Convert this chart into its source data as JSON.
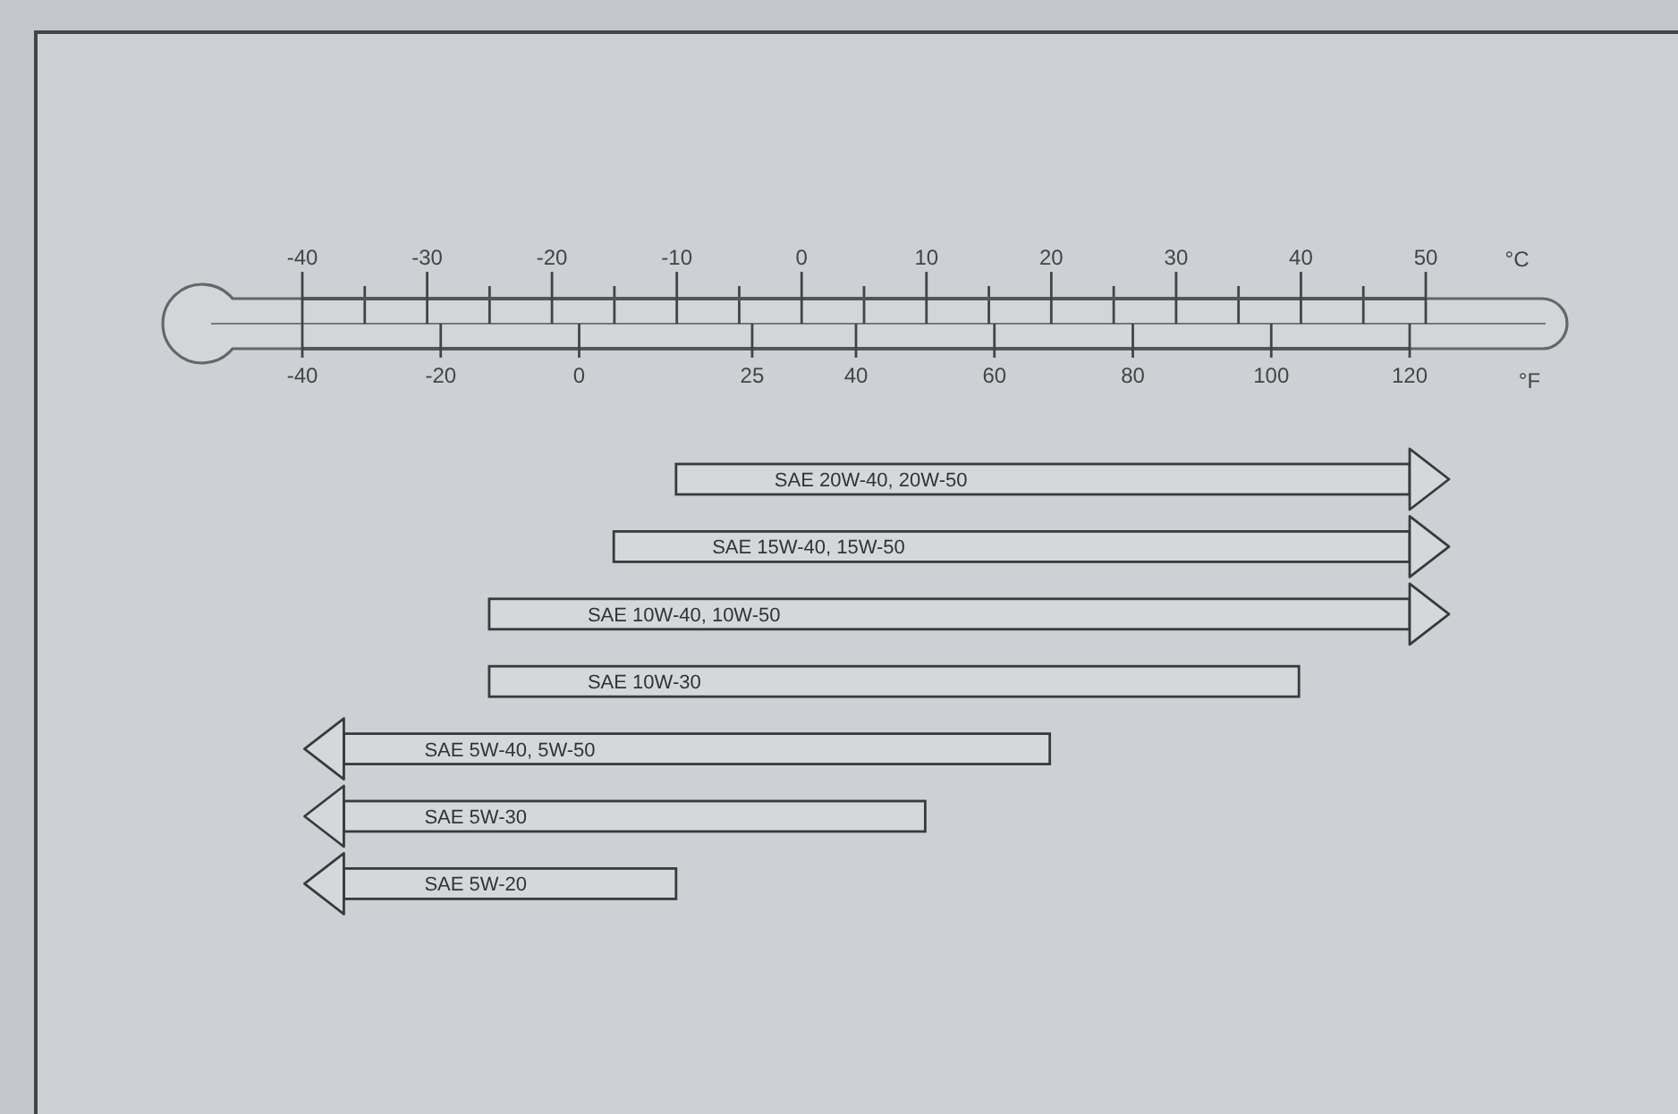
{
  "chart_data": {
    "type": "bar",
    "orientation": "horizontal",
    "xlabel": "°F",
    "x2label": "°C",
    "categories": [
      "SAE 20W-40, 20W-50",
      "SAE 15W-40, 15W-50",
      "SAE 10W-40, 10W-50",
      "SAE 10W-30",
      "SAE 5W-40, 5W-50",
      "SAE 5W-30",
      "SAE 5W-20"
    ],
    "base": [
      14,
      5,
      -13,
      -13,
      -34,
      -34,
      -34
    ],
    "values": [
      106,
      115,
      133,
      117,
      102,
      84,
      48
    ],
    "color": "#d5d8db",
    "xlim": [
      -40,
      120
    ],
    "xticks": [
      -40,
      -20,
      0,
      25,
      40,
      60,
      80,
      100,
      120
    ],
    "x2lim": [
      -40,
      50
    ],
    "x2ticks": [
      -40,
      -30,
      -20,
      -10,
      0,
      10,
      20,
      30,
      40,
      50
    ]
  }
}
